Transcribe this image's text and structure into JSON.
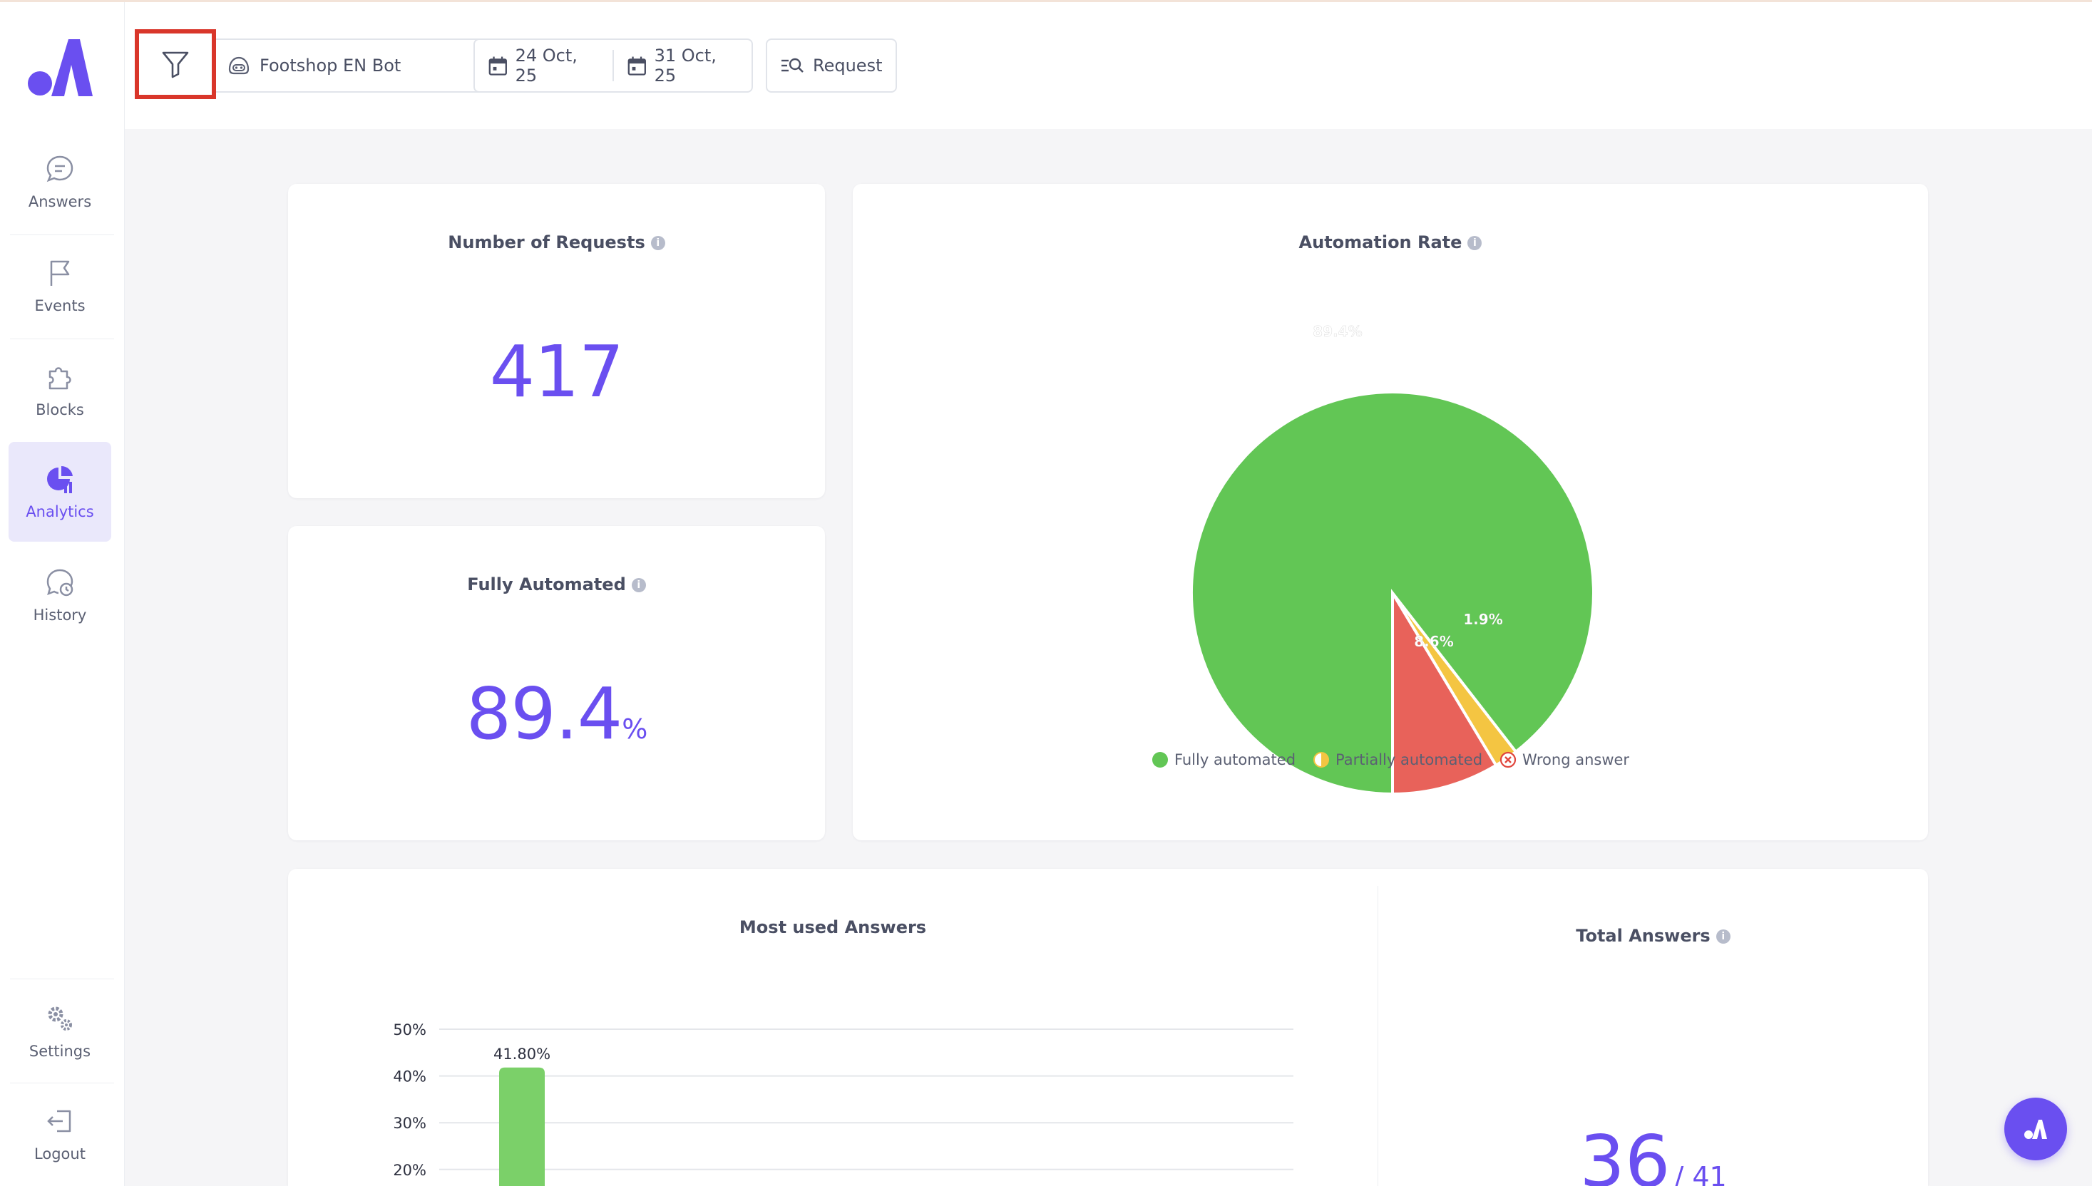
{
  "sidebar": {
    "items": [
      {
        "label": "Answers",
        "icon": "chat-bubble-icon"
      },
      {
        "label": "Events",
        "icon": "flag-icon"
      },
      {
        "label": "Blocks",
        "icon": "puzzle-icon"
      },
      {
        "label": "Analytics",
        "icon": "pie-chart-icon",
        "active": true
      },
      {
        "label": "History",
        "icon": "history-icon"
      },
      {
        "label": "Settings",
        "icon": "gears-icon"
      },
      {
        "label": "Logout",
        "icon": "logout-icon"
      }
    ]
  },
  "header": {
    "bot_name": "Footshop EN Bot",
    "date_from": "24 Oct, 25",
    "date_to": "31 Oct, 25",
    "request_label": "Request"
  },
  "requests_card": {
    "title": "Number of Requests",
    "value": "417"
  },
  "fully_automated_card": {
    "title": "Fully Automated",
    "value": "89.4",
    "unit": "%"
  },
  "automation_card": {
    "title": "Automation Rate",
    "legend": [
      {
        "label": "Fully automated",
        "color": "#62c655"
      },
      {
        "label": "Partially automated",
        "color": "#f4c542"
      },
      {
        "label": "Wrong answer",
        "color": "#e8625a"
      }
    ]
  },
  "most_used_card": {
    "title": "Most used Answers"
  },
  "total_answers_card": {
    "title": "Total Answers",
    "value": "36",
    "total": "/ 41"
  },
  "chart_data": [
    {
      "type": "pie",
      "title": "Automation Rate",
      "labels": [
        "Fully automated",
        "Partially automated",
        "Wrong answer"
      ],
      "values": [
        89.4,
        1.9,
        8.6
      ],
      "value_labels": [
        "89.4%",
        "1.9%",
        "8.6%"
      ],
      "colors": [
        "#62c655",
        "#f4c542",
        "#e8625a"
      ],
      "legend": "bottom"
    },
    {
      "type": "bar",
      "title": "Most used Answers",
      "categories": [
        ""
      ],
      "values": [
        41.8
      ],
      "value_labels": [
        "41.80%"
      ],
      "yticks": [
        "20%",
        "30%",
        "40%",
        "50%"
      ],
      "ylim": [
        0,
        50
      ],
      "grid": true,
      "color": "#7bd069"
    }
  ],
  "colors": {
    "accent": "#6a4ff0",
    "highlight": "#d9362a"
  }
}
